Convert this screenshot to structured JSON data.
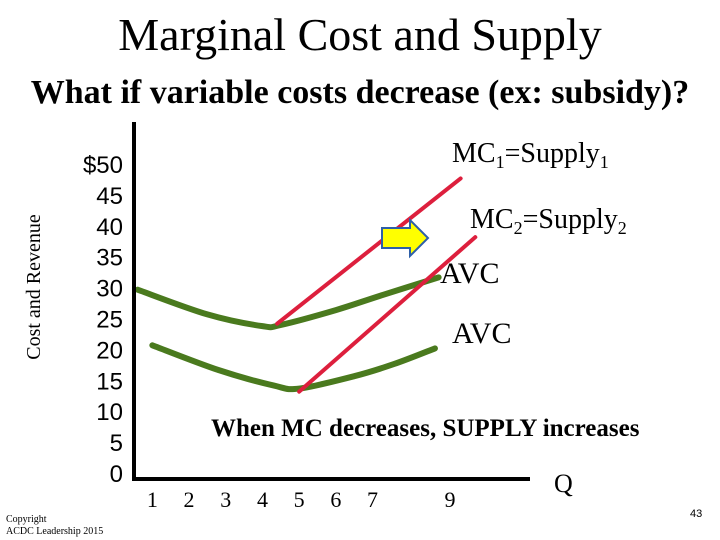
{
  "title": "Marginal Cost and Supply",
  "subtitle": "What if variable costs decrease (ex: subsidy)?",
  "copyright_lines": [
    "Copyright",
    "ACDC Leadership 2015"
  ],
  "slide_number": "43",
  "colors": {
    "mc": "#dd1f3d",
    "avc": "#4a7a1e",
    "arrow_fill": "#ffff00",
    "arrow_stroke": "#2e5fa8",
    "axis": "#000000"
  },
  "icons": {
    "shift_arrow": "right-arrow-icon"
  },
  "chart_data": {
    "type": "line",
    "ylabel": "Cost and Revenue",
    "xlabel": "Q",
    "y_tick_labels": [
      "$50",
      "45",
      "40",
      "35",
      "30",
      "25",
      "20",
      "15",
      "10",
      "5",
      "0"
    ],
    "y_ticks": [
      50,
      45,
      40,
      35,
      30,
      25,
      20,
      15,
      10,
      5,
      0
    ],
    "x_tick_labels": [
      "1",
      "2",
      "3",
      "4",
      "5",
      "6",
      "7",
      "9"
    ],
    "x_ticks": [
      1,
      2,
      3,
      4,
      5,
      6,
      7,
      9
    ],
    "annotation": "When MC decreases, SUPPLY increases",
    "series": [
      {
        "name": "MC1=Supply1",
        "label_main": "MC",
        "label_sub1": "1",
        "label_mid": "=Supply",
        "label_sub2": "1",
        "kind": "mc",
        "points": [
          [
            4.4,
            24
          ],
          [
            9.4,
            47.5
          ]
        ]
      },
      {
        "name": "MC2=Supply2",
        "label_main": "MC",
        "label_sub1": "2",
        "label_mid": "=Supply",
        "label_sub2": "2",
        "kind": "mc",
        "points": [
          [
            5,
            13
          ],
          [
            9.8,
            38
          ]
        ]
      },
      {
        "name": "AVC",
        "label_main": "AVC",
        "kind": "avc",
        "points": [
          [
            0.6,
            29.5
          ],
          [
            2.5,
            25.5
          ],
          [
            4,
            23.6
          ],
          [
            4.5,
            23.8
          ],
          [
            6,
            26.2
          ],
          [
            7.2,
            28.5
          ],
          [
            8.8,
            31.5
          ]
        ]
      },
      {
        "name": "AVC",
        "label_main": "AVC",
        "kind": "avc",
        "points": [
          [
            1,
            20.5
          ],
          [
            2.8,
            16.5
          ],
          [
            4.3,
            14
          ],
          [
            5,
            13.5
          ],
          [
            6.5,
            15.5
          ],
          [
            7.6,
            17.5
          ],
          [
            8.7,
            20
          ]
        ]
      }
    ]
  }
}
